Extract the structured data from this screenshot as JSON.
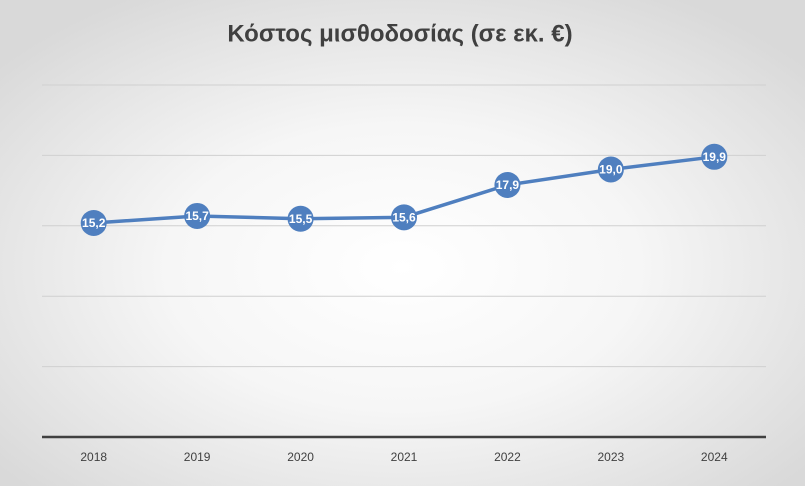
{
  "chart_data": {
    "type": "line",
    "title": "Κόστος μισθοδοσίας (σε εκ. €)",
    "categories": [
      "2018",
      "2019",
      "2020",
      "2021",
      "2022",
      "2023",
      "2024"
    ],
    "series": [
      {
        "color": "#4f7fbf",
        "values": [
          15.2,
          15.7,
          15.5,
          15.6,
          17.9,
          19.0,
          19.9
        ],
        "value_labels": [
          "15,2",
          "15,7",
          "15,5",
          "15,6",
          "17,9",
          "19,0",
          "19,9"
        ]
      }
    ],
    "ylim": [
      0,
      25
    ],
    "yticks": [
      0,
      5,
      10,
      15,
      20,
      25
    ],
    "grid": true
  }
}
